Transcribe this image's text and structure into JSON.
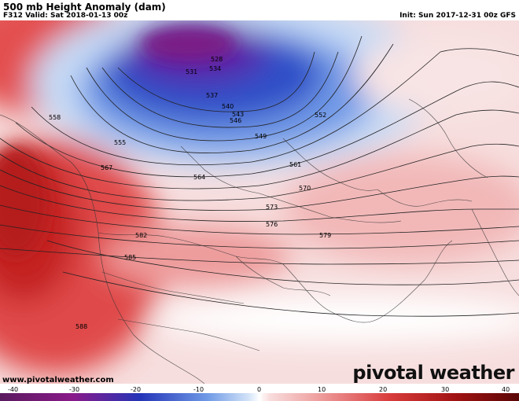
{
  "header": {
    "title": "500 mb Height Anomaly (dam)",
    "valid": "F312 Valid: Sat 2018-01-13 00z",
    "init": "Init: Sun 2017-12-31 00z GFS"
  },
  "footer": {
    "site": "www.pivotalweather.com",
    "brand": "pivotal weather"
  },
  "colorbar": {
    "ticks": [
      "-40",
      "-30",
      "-20",
      "-10",
      "0",
      "10",
      "20",
      "30",
      "40"
    ],
    "colors": {
      "strong_negative": "#6a0a6e",
      "negative": "#1f36b8",
      "weak_negative": "#b9d3f2",
      "zero": "#ffffff",
      "weak_positive": "#f6c9c9",
      "positive": "#e05a5a",
      "strong_positive": "#8e0c0c"
    }
  },
  "contour_labels": [
    "528",
    "531",
    "534",
    "537",
    "540",
    "543",
    "546",
    "549",
    "552",
    "555",
    "558",
    "561",
    "564",
    "567",
    "570",
    "573",
    "576",
    "579",
    "582",
    "585",
    "588"
  ]
}
